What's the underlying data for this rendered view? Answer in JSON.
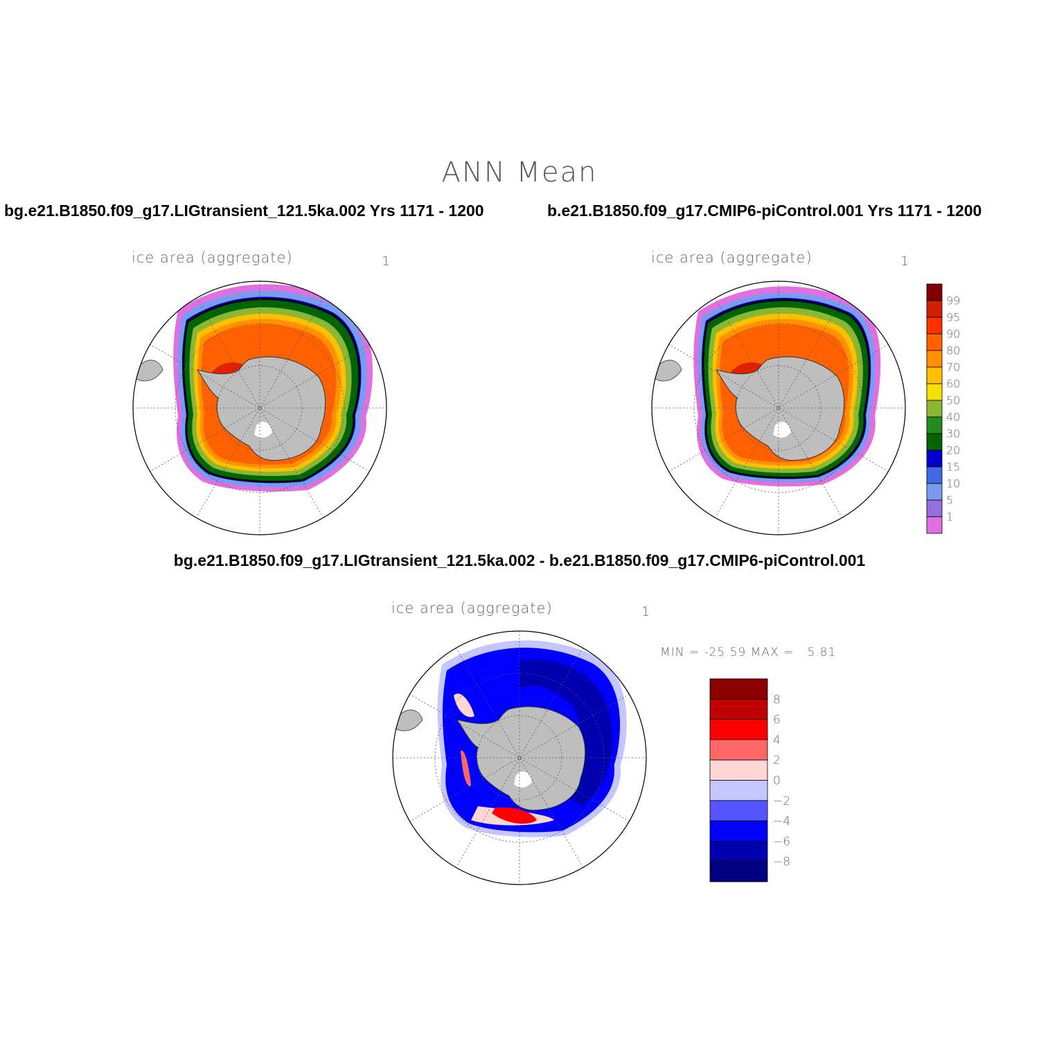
{
  "figure": {
    "title": "ANN Mean",
    "case1_label": "bg.e21.B1850.f09_g17.LIGtransient_121.5ka.002  Yrs 1171 - 1200",
    "case2_label": "b.e21.B1850.f09_g17.CMIP6-piControl.001  Yrs 1171 - 1200",
    "diff_label": "bg.e21.B1850.f09_g17.LIGtransient_121.5ka.002 - b.e21.B1850.f09_g17.CMIP6-piControl.001"
  },
  "panels": {
    "case1": {
      "variable": "ice area  (aggregate)",
      "units": "1"
    },
    "case2": {
      "variable": "ice area  (aggregate)",
      "units": "1"
    },
    "diff": {
      "variable": "ice area  (aggregate)",
      "units": "1",
      "min_max": "MIN = -25.59 MAX =   5.81"
    }
  },
  "concentration_colorbar": {
    "labels": [
      "99",
      "95",
      "90",
      "80",
      "70",
      "60",
      "50",
      "40",
      "30",
      "20",
      "15",
      "10",
      "5",
      "1"
    ],
    "colors": [
      "#800000",
      "#d02000",
      "#ff3000",
      "#ff6000",
      "#ff9000",
      "#ffc000",
      "#f5e000",
      "#8ab832",
      "#228b22",
      "#006400",
      "#0000cd",
      "#4169e1",
      "#7b9cee",
      "#9370db",
      "#e070e0"
    ]
  },
  "difference_colorbar": {
    "labels": [
      "8",
      "6",
      "4",
      "2",
      "0",
      "-2",
      "-4",
      "-6",
      "-8"
    ],
    "colors": [
      "#8b0000",
      "#c00000",
      "#ff0000",
      "#ff6666",
      "#ffd6d6",
      "#c6c6ff",
      "#5555ff",
      "#0000ff",
      "#0000b0",
      "#000080"
    ]
  },
  "map_colors": {
    "land": "#bebebe",
    "ocean": "#ffffff",
    "ice_edge_line": "#000000"
  }
}
